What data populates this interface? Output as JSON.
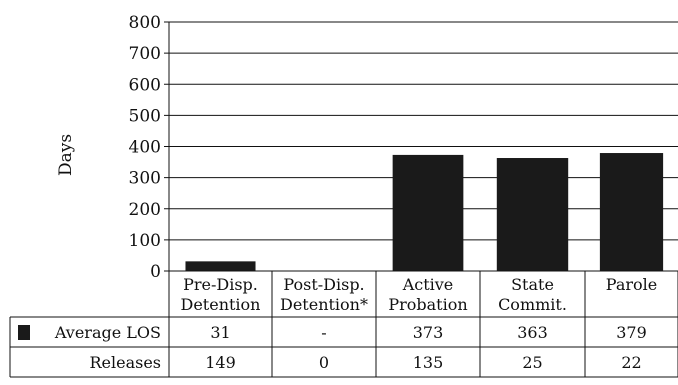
{
  "chart_data": {
    "type": "bar",
    "ylabel": "Days",
    "ylim": [
      0,
      800
    ],
    "yticks": [
      0,
      100,
      200,
      300,
      400,
      500,
      600,
      700,
      800
    ],
    "grid": true,
    "categories": [
      [
        "Pre-Disp.",
        "Detention"
      ],
      [
        "Post-Disp.",
        "Detention*"
      ],
      [
        "Active",
        "Probation"
      ],
      [
        "State",
        "Commit."
      ],
      [
        "Parole"
      ]
    ],
    "series": [
      {
        "name": "Average LOS",
        "values": [
          31,
          null,
          373,
          363,
          379
        ],
        "color": "#1a1a1a"
      }
    ],
    "table": {
      "rows": [
        {
          "label": "Average LOS",
          "show_swatch": true,
          "cells": [
            "31",
            "-",
            "373",
            "363",
            "379"
          ]
        },
        {
          "label": "Releases",
          "show_swatch": false,
          "cells": [
            "149",
            "0",
            "135",
            "25",
            "22"
          ]
        }
      ]
    }
  }
}
